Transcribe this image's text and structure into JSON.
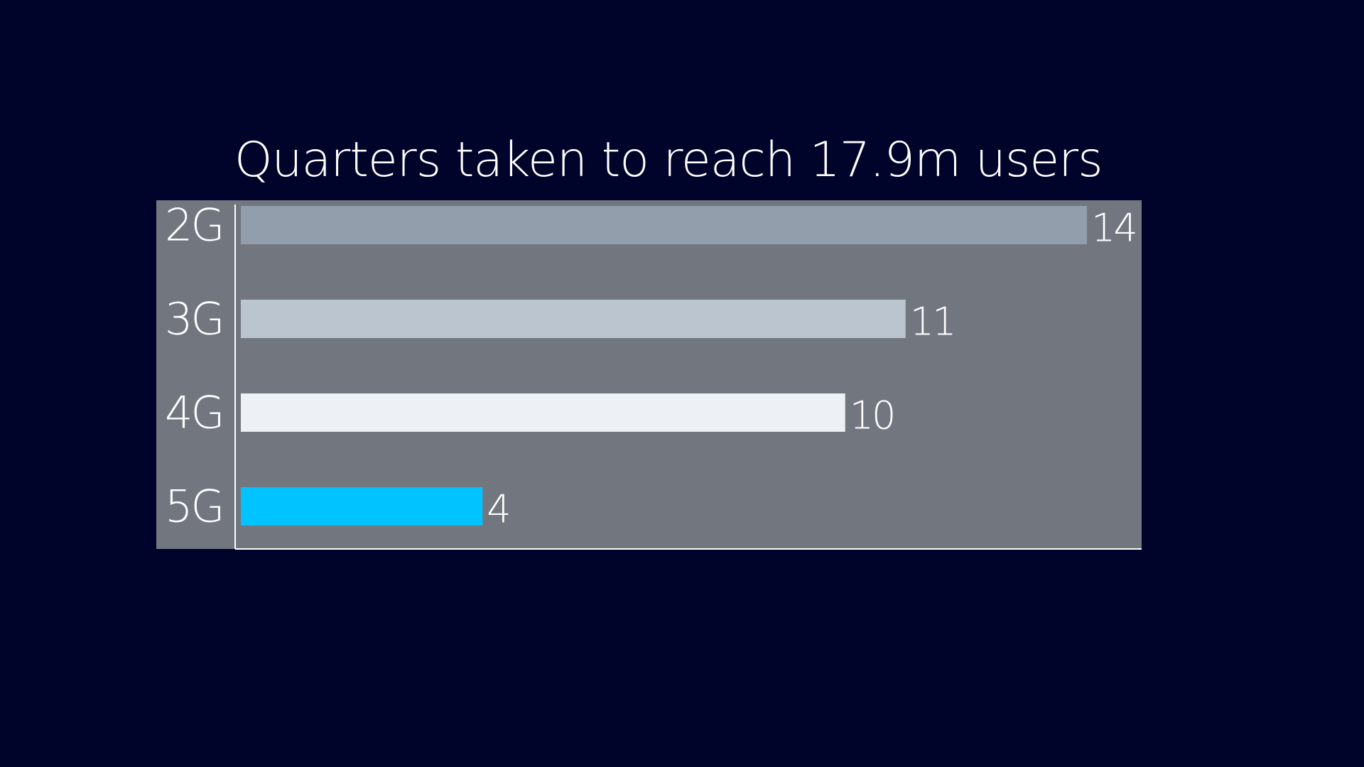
{
  "chart_data": {
    "type": "bar",
    "orientation": "horizontal",
    "title": "Quarters taken to reach 17.9m users",
    "categories": [
      "2G",
      "3G",
      "4G",
      "5G"
    ],
    "values": [
      14,
      11,
      10,
      4
    ],
    "data_labels": [
      "14",
      "11",
      "10",
      "4"
    ],
    "bar_colors": [
      "#929eab",
      "#bbc5d0",
      "#edf1f5",
      "#00c3ff"
    ],
    "plot_background": "#72767f",
    "page_background": "#00032a",
    "xlim": [
      0,
      14
    ],
    "grid": false,
    "legend": "none"
  }
}
